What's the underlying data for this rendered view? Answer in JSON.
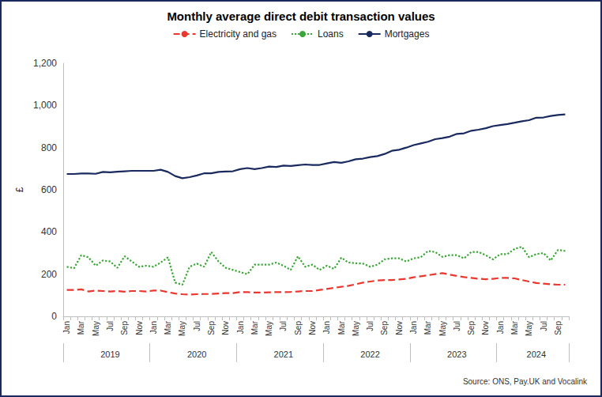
{
  "chart_data": {
    "type": "line",
    "title": "Monthly average direct debit transaction values",
    "y_label": "£",
    "source": "Source: ONS, Pay.UK and Vocalink",
    "categories": [
      "Jan",
      null,
      "Mar",
      null,
      "May",
      null,
      "Jul",
      null,
      "Sep",
      null,
      "Nov",
      null,
      "Jan",
      null,
      "Mar",
      null,
      "May",
      null,
      "Jul",
      null,
      "Sep",
      null,
      "Nov",
      null,
      "Jan",
      null,
      "Mar",
      null,
      "May",
      null,
      "Jul",
      null,
      "Sep",
      null,
      "Nov",
      null,
      "Jan",
      null,
      "Mar",
      null,
      "May",
      null,
      "Jul",
      null,
      "Sep",
      null,
      "Nov",
      null,
      "Jan",
      null,
      "Mar",
      null,
      "May",
      null,
      "Jul",
      null,
      "Sep",
      null,
      "Nov",
      null,
      "Jan",
      null,
      "Mar",
      null,
      "May",
      null,
      "Jul",
      null,
      "Sep",
      null
    ],
    "year_groups": [
      {
        "label": "2019",
        "size": 12
      },
      {
        "label": "2020",
        "size": 12
      },
      {
        "label": "2021",
        "size": 12
      },
      {
        "label": "2022",
        "size": 12
      },
      {
        "label": "2023",
        "size": 12
      },
      {
        "label": "2024",
        "size": 10
      }
    ],
    "series": [
      {
        "name": "Electricity and gas",
        "color": "#e8382f",
        "line_style": "dashed",
        "values": [
          125,
          125,
          128,
          118,
          122,
          120,
          118,
          120,
          117,
          120,
          120,
          118,
          122,
          122,
          115,
          108,
          105,
          103,
          105,
          106,
          106,
          108,
          110,
          110,
          115,
          115,
          113,
          113,
          114,
          115,
          115,
          116,
          118,
          120,
          120,
          125,
          130,
          135,
          140,
          145,
          152,
          160,
          165,
          170,
          172,
          172,
          175,
          178,
          185,
          190,
          195,
          200,
          205,
          198,
          192,
          186,
          182,
          178,
          176,
          178,
          182,
          182,
          180,
          172,
          165,
          158,
          155,
          152,
          150,
          150
        ]
      },
      {
        "name": "Loans",
        "color": "#3aa635",
        "line_style": "dotted",
        "values": [
          235,
          228,
          290,
          280,
          240,
          265,
          260,
          230,
          285,
          260,
          235,
          240,
          235,
          255,
          280,
          160,
          150,
          235,
          250,
          235,
          305,
          260,
          230,
          220,
          210,
          200,
          245,
          245,
          245,
          255,
          240,
          220,
          285,
          235,
          245,
          220,
          240,
          225,
          278,
          255,
          252,
          250,
          235,
          245,
          270,
          275,
          275,
          260,
          275,
          280,
          310,
          305,
          282,
          290,
          290,
          275,
          305,
          305,
          290,
          270,
          295,
          295,
          320,
          330,
          280,
          295,
          300,
          265,
          315,
          310
        ]
      },
      {
        "name": "Mortgages",
        "color": "#1a2a5e",
        "line_style": "solid",
        "values": [
          675,
          675,
          677,
          677,
          676,
          685,
          683,
          686,
          688,
          690,
          690,
          690,
          690,
          695,
          685,
          665,
          655,
          660,
          668,
          678,
          678,
          685,
          687,
          688,
          698,
          703,
          698,
          703,
          710,
          708,
          715,
          713,
          717,
          720,
          718,
          718,
          725,
          732,
          728,
          735,
          745,
          748,
          755,
          760,
          770,
          785,
          790,
          800,
          812,
          820,
          828,
          840,
          845,
          852,
          865,
          868,
          880,
          885,
          892,
          902,
          907,
          912,
          918,
          925,
          930,
          942,
          943,
          950,
          955,
          958
        ]
      }
    ],
    "ylim": [
      0,
      1200
    ],
    "yticks": [
      0,
      200,
      400,
      600,
      800,
      1000,
      1200
    ],
    "grid": false,
    "legend": "top"
  }
}
